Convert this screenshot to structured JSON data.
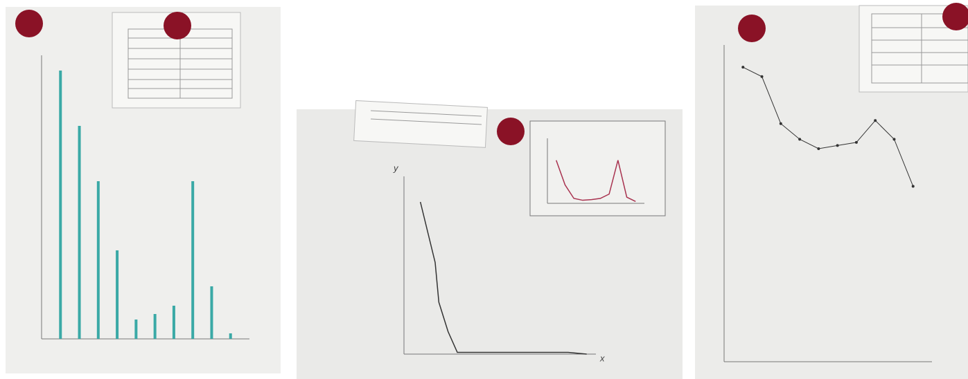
{
  "chart_data": [
    {
      "type": "bar",
      "x": [
        1,
        2,
        3,
        4,
        5,
        6,
        7,
        8,
        9,
        10
      ],
      "values": [
        97,
        77,
        57,
        32,
        7,
        9,
        12,
        57,
        19,
        2
      ],
      "color": "#3aa9a6",
      "xlim": [
        0,
        11
      ],
      "ylim": [
        0,
        100
      ]
    },
    {
      "type": "line",
      "x": [
        1,
        1.8,
        2,
        2.5,
        3,
        4,
        5,
        6,
        7,
        8,
        9,
        10
      ],
      "values": [
        88,
        53,
        30,
        13,
        1,
        1,
        1,
        1,
        1,
        1,
        1,
        0
      ],
      "color": "#333333",
      "xlim": [
        0,
        10.5
      ],
      "ylim": [
        0,
        100
      ],
      "y_label": "y",
      "x_label": "x"
    },
    {
      "type": "line",
      "x": [
        1,
        2,
        3,
        4,
        5,
        6,
        7,
        8,
        9,
        10
      ],
      "values": [
        70,
        30,
        8,
        5,
        6,
        8,
        15,
        70,
        10,
        3
      ],
      "color": "#a8324f",
      "xlim": [
        0,
        11
      ],
      "ylim": [
        0,
        100
      ]
    },
    {
      "type": "line",
      "x": [
        1,
        2,
        3,
        4,
        5,
        6,
        7,
        8,
        9,
        10
      ],
      "values": [
        94,
        91,
        76,
        71,
        68,
        69,
        70,
        77,
        71,
        56
      ],
      "color": "#333333",
      "xlim": [
        0,
        11
      ],
      "ylim": [
        0,
        100
      ]
    }
  ]
}
